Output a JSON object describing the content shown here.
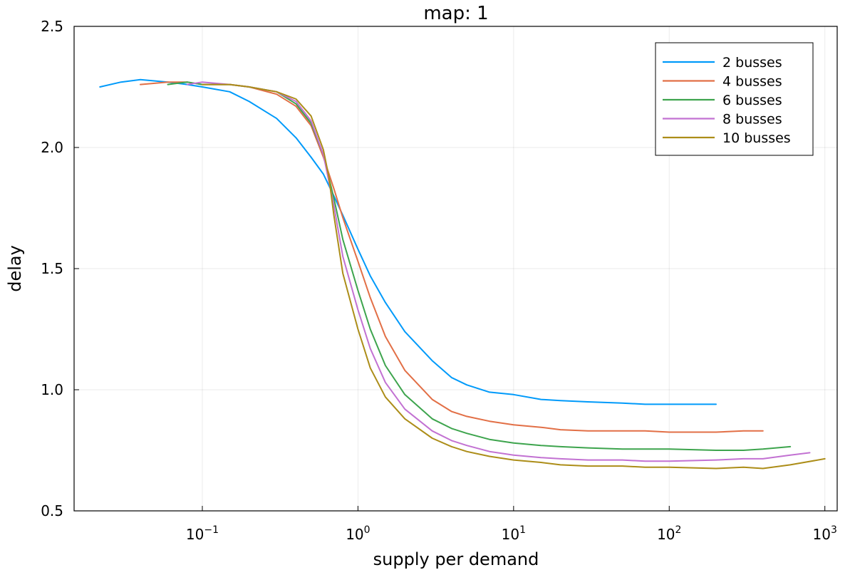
{
  "chart_data": {
    "type": "line",
    "title": "map: 1",
    "xlabel": "supply per demand",
    "ylabel": "delay",
    "xscale": "log",
    "xlim": [
      0.015,
      1200
    ],
    "ylim": [
      0.5,
      2.5
    ],
    "x_ticks": [
      {
        "value": 0.1,
        "base": "10",
        "exp": "−1"
      },
      {
        "value": 1,
        "base": "10",
        "exp": "0"
      },
      {
        "value": 10,
        "base": "10",
        "exp": "1"
      },
      {
        "value": 100,
        "base": "10",
        "exp": "2"
      },
      {
        "value": 1000,
        "base": "10",
        "exp": "3"
      }
    ],
    "y_ticks": [
      {
        "value": 0.5,
        "label": "0.5"
      },
      {
        "value": 1.0,
        "label": "1.0"
      },
      {
        "value": 1.5,
        "label": "1.5"
      },
      {
        "value": 2.0,
        "label": "2.0"
      },
      {
        "value": 2.5,
        "label": "2.5"
      }
    ],
    "grid": true,
    "legend_position": "top-right",
    "series": [
      {
        "name": "2 busses",
        "color": "#009AFA",
        "x": [
          0.022,
          0.03,
          0.04,
          0.06,
          0.08,
          0.1,
          0.15,
          0.2,
          0.3,
          0.4,
          0.5,
          0.6,
          0.7,
          0.8,
          1.0,
          1.2,
          1.5,
          2,
          3,
          4,
          5,
          7,
          10,
          15,
          20,
          30,
          50,
          70,
          100,
          200
        ],
        "y": [
          2.25,
          2.27,
          2.28,
          2.27,
          2.26,
          2.25,
          2.23,
          2.19,
          2.12,
          2.04,
          1.96,
          1.89,
          1.8,
          1.72,
          1.58,
          1.47,
          1.36,
          1.24,
          1.12,
          1.05,
          1.02,
          0.99,
          0.98,
          0.96,
          0.955,
          0.95,
          0.945,
          0.94,
          0.94,
          0.94
        ]
      },
      {
        "name": "4 busses",
        "color": "#E26F46",
        "x": [
          0.04,
          0.06,
          0.08,
          0.1,
          0.15,
          0.2,
          0.3,
          0.4,
          0.5,
          0.6,
          0.7,
          0.8,
          1.0,
          1.2,
          1.5,
          2,
          3,
          4,
          5,
          7,
          10,
          15,
          20,
          30,
          50,
          70,
          100,
          200,
          300,
          400
        ],
        "y": [
          2.26,
          2.27,
          2.27,
          2.26,
          2.26,
          2.25,
          2.22,
          2.17,
          2.09,
          1.96,
          1.83,
          1.71,
          1.53,
          1.38,
          1.22,
          1.08,
          0.96,
          0.91,
          0.89,
          0.87,
          0.855,
          0.845,
          0.835,
          0.83,
          0.83,
          0.83,
          0.825,
          0.825,
          0.83,
          0.83
        ]
      },
      {
        "name": "6 busses",
        "color": "#3DA44D",
        "x": [
          0.06,
          0.08,
          0.1,
          0.15,
          0.2,
          0.3,
          0.4,
          0.5,
          0.6,
          0.7,
          0.8,
          1.0,
          1.2,
          1.5,
          2,
          3,
          4,
          5,
          7,
          10,
          15,
          20,
          30,
          50,
          70,
          100,
          200,
          300,
          400,
          600
        ],
        "y": [
          2.26,
          2.27,
          2.26,
          2.26,
          2.25,
          2.23,
          2.18,
          2.1,
          1.97,
          1.79,
          1.62,
          1.41,
          1.25,
          1.1,
          0.98,
          0.88,
          0.84,
          0.82,
          0.795,
          0.78,
          0.77,
          0.765,
          0.76,
          0.755,
          0.755,
          0.755,
          0.75,
          0.75,
          0.755,
          0.765
        ]
      },
      {
        "name": "8 busses",
        "color": "#C271D2",
        "x": [
          0.08,
          0.1,
          0.15,
          0.2,
          0.3,
          0.4,
          0.5,
          0.6,
          0.7,
          0.8,
          1.0,
          1.2,
          1.5,
          2,
          3,
          4,
          5,
          7,
          10,
          15,
          20,
          30,
          50,
          70,
          100,
          200,
          300,
          400,
          600,
          800
        ],
        "y": [
          2.26,
          2.27,
          2.26,
          2.25,
          2.23,
          2.19,
          2.11,
          1.97,
          1.76,
          1.55,
          1.33,
          1.17,
          1.03,
          0.92,
          0.83,
          0.79,
          0.77,
          0.745,
          0.73,
          0.72,
          0.715,
          0.71,
          0.71,
          0.705,
          0.705,
          0.71,
          0.715,
          0.715,
          0.73,
          0.74
        ]
      },
      {
        "name": "10 busses",
        "color": "#AC8D18",
        "x": [
          0.1,
          0.15,
          0.2,
          0.3,
          0.4,
          0.5,
          0.6,
          0.65,
          0.7,
          0.8,
          1.0,
          1.2,
          1.5,
          2,
          3,
          4,
          5,
          7,
          10,
          15,
          20,
          30,
          50,
          70,
          100,
          200,
          300,
          400,
          600,
          1000
        ],
        "y": [
          2.26,
          2.26,
          2.25,
          2.23,
          2.2,
          2.13,
          1.99,
          1.88,
          1.72,
          1.48,
          1.25,
          1.09,
          0.97,
          0.88,
          0.8,
          0.765,
          0.745,
          0.725,
          0.71,
          0.7,
          0.69,
          0.685,
          0.685,
          0.68,
          0.68,
          0.675,
          0.68,
          0.675,
          0.69,
          0.715
        ]
      }
    ]
  }
}
